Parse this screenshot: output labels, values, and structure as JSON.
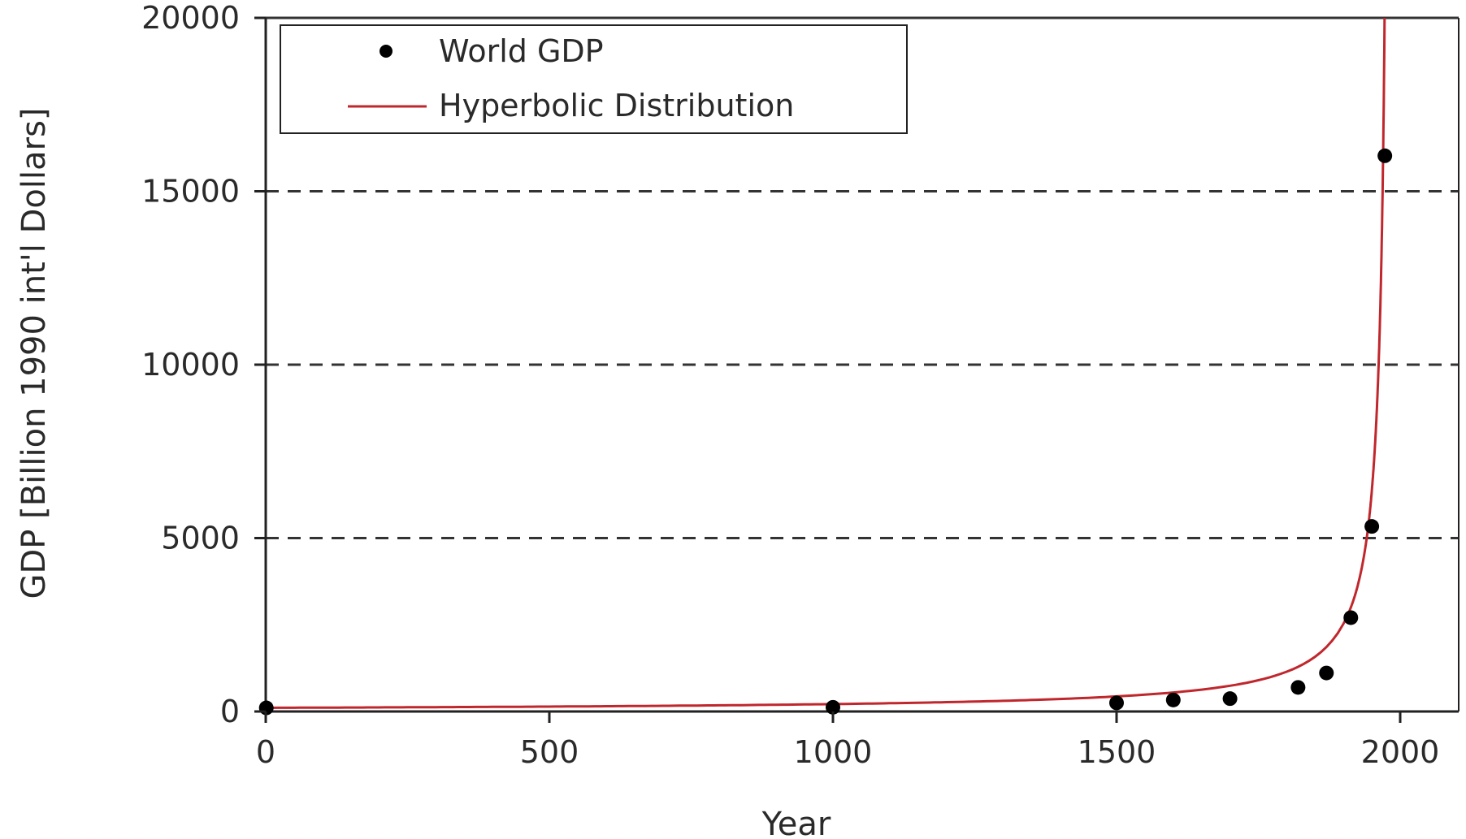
{
  "chart_data": {
    "type": "scatter",
    "title": "",
    "xlabel": "Year",
    "ylabel": "GDP [Billion 1990 int'l Dollars]",
    "xlim": [
      0,
      2100
    ],
    "ylim": [
      0,
      20000
    ],
    "x_ticks": [
      0,
      500,
      1000,
      1500,
      2000
    ],
    "y_ticks": [
      0,
      5000,
      10000,
      15000,
      20000
    ],
    "grid": "horizontal dashed at y ticks",
    "legend_position": "top-left",
    "series": [
      {
        "name": "World GDP",
        "kind": "points",
        "color": "#000000",
        "x": [
          1,
          1000,
          1500,
          1600,
          1700,
          1820,
          1870,
          1913,
          1950,
          1973
        ],
        "y": [
          105,
          121,
          248,
          331,
          371,
          694,
          1110,
          2705,
          5336,
          16024
        ]
      },
      {
        "name": "Hyperbolic Distribution",
        "kind": "line",
        "color": "#c0272d",
        "formula": "y = A / (t0 - x)",
        "A": 210000,
        "t0": 1983
      }
    ]
  }
}
